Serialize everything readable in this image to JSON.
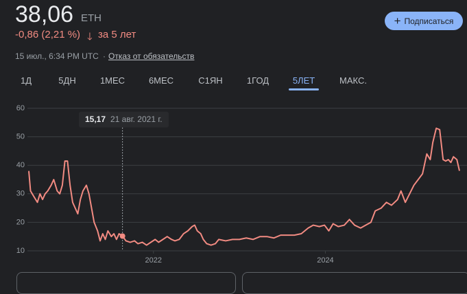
{
  "header": {
    "price": "38,06",
    "currency": "ETH",
    "change": "-0,86 (2,21 %)",
    "period": "за 5 лет",
    "timestamp": "15 июл., 6:34 PM UTC",
    "separator": "·",
    "disclaimer": "Отказ от обязательств",
    "subscribe": "Подписаться"
  },
  "tabs": [
    "1Д",
    "5ДН",
    "1МЕС",
    "6МЕС",
    "С1ЯН",
    "1ГОД",
    "5ЛЕТ",
    "МАКС."
  ],
  "active_tab": 6,
  "chart_data": {
    "type": "line",
    "color": "#f28b82",
    "grid": true,
    "x": [
      2020.55,
      2020.57,
      2020.61,
      2020.65,
      2020.68,
      2020.71,
      2020.74,
      2020.77,
      2020.81,
      2020.84,
      2020.88,
      2020.91,
      2020.94,
      2020.97,
      2021.0,
      2021.03,
      2021.06,
      2021.09,
      2021.12,
      2021.15,
      2021.18,
      2021.22,
      2021.25,
      2021.28,
      2021.31,
      2021.35,
      2021.38,
      2021.41,
      2021.44,
      2021.47,
      2021.51,
      2021.54,
      2021.57,
      2021.6,
      2021.64,
      2021.68,
      2021.73,
      2021.78,
      2021.82,
      2021.87,
      2021.92,
      2021.97,
      2022.02,
      2022.06,
      2022.11,
      2022.16,
      2022.21,
      2022.25,
      2022.3,
      2022.35,
      2022.4,
      2022.45,
      2022.48,
      2022.51,
      2022.55,
      2022.58,
      2022.62,
      2022.67,
      2022.72,
      2022.76,
      2022.84,
      2022.92,
      2023.0,
      2023.08,
      2023.16,
      2023.24,
      2023.32,
      2023.4,
      2023.48,
      2023.56,
      2023.64,
      2023.72,
      2023.8,
      2023.86,
      2023.93,
      2023.99,
      2024.04,
      2024.09,
      2024.15,
      2024.22,
      2024.28,
      2024.34,
      2024.41,
      2024.47,
      2024.53,
      2024.58,
      2024.65,
      2024.71,
      2024.77,
      2024.84,
      2024.88,
      2024.93,
      2024.98,
      2025.03,
      2025.08,
      2025.13,
      2025.18,
      2025.22,
      2025.25,
      2025.29,
      2025.33,
      2025.37,
      2025.4,
      2025.43,
      2025.46,
      2025.49,
      2025.53,
      2025.56
    ],
    "values": [
      38,
      31,
      29,
      27,
      30,
      28,
      30,
      31,
      33,
      35,
      31,
      30,
      33,
      41.5,
      41.5,
      33,
      27,
      25,
      23,
      28,
      31,
      33,
      30,
      25,
      20,
      17,
      13.5,
      16,
      14,
      17,
      15,
      16,
      14,
      16,
      15.17,
      13.5,
      13,
      13.5,
      12.5,
      13,
      12,
      13,
      14,
      13,
      14,
      15,
      14,
      13.5,
      14,
      16,
      17,
      18.5,
      19,
      17,
      16,
      14,
      12.5,
      12,
      12.5,
      14,
      13.5,
      14,
      14,
      14.5,
      14,
      15,
      15,
      14.5,
      15.5,
      15.5,
      15.5,
      16,
      18,
      19,
      18.5,
      19,
      17,
      19.5,
      18.5,
      19,
      21,
      19,
      18,
      19,
      20,
      24,
      25,
      27,
      26,
      28,
      31,
      27,
      30,
      33,
      35,
      37,
      44,
      42,
      48,
      53,
      52.5,
      42,
      41.5,
      42,
      41,
      43,
      42,
      38.06
    ],
    "xlim": [
      2020.55,
      2025.56
    ],
    "xticks": [
      2022,
      2024
    ],
    "ylim": [
      10,
      60
    ],
    "yticks": [
      10,
      20,
      30,
      40,
      50,
      60
    ],
    "tooltip": {
      "x": 2021.64,
      "value": 15.17,
      "label": "15,17",
      "date": "21 авг. 2021 г."
    }
  }
}
